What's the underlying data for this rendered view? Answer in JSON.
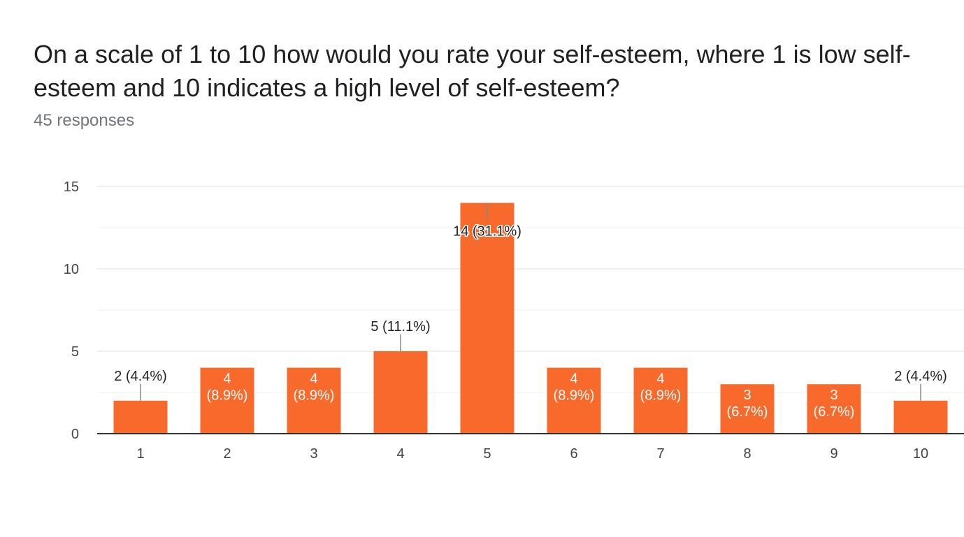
{
  "question": {
    "title": "On a scale of 1 to 10 how would you rate your self-esteem, where 1 is low self-esteem and 10 indicates a high level of self-esteem?",
    "responses": "45 responses"
  },
  "colors": {
    "bar": "#f86a2c",
    "gridline": "#e8e8e8",
    "axis": "#333333",
    "label_dark": "#222222",
    "label_light": "#ffffff"
  },
  "chart_data": {
    "type": "bar",
    "categories": [
      "1",
      "2",
      "3",
      "4",
      "5",
      "6",
      "7",
      "8",
      "9",
      "10"
    ],
    "values": [
      2,
      4,
      4,
      5,
      14,
      4,
      4,
      3,
      3,
      2
    ],
    "data_labels": [
      [
        "2 (4.4%)"
      ],
      [
        "4",
        "(8.9%)"
      ],
      [
        "4",
        "(8.9%)"
      ],
      [
        "5 (11.1%)"
      ],
      [
        "14 (31.1%)"
      ],
      [
        "4",
        "(8.9%)"
      ],
      [
        "4",
        "(8.9%)"
      ],
      [
        "3",
        "(6.7%)"
      ],
      [
        "3",
        "(6.7%)"
      ],
      [
        "2 (4.4%)"
      ]
    ],
    "label_placement": [
      "above",
      "inside",
      "inside",
      "above",
      "inside-top",
      "inside",
      "inside",
      "inside",
      "inside",
      "above"
    ],
    "y_ticks": [
      0,
      5,
      10,
      15
    ],
    "ylim": [
      0,
      15
    ],
    "grid": true,
    "title": "",
    "xlabel": "",
    "ylabel": ""
  }
}
